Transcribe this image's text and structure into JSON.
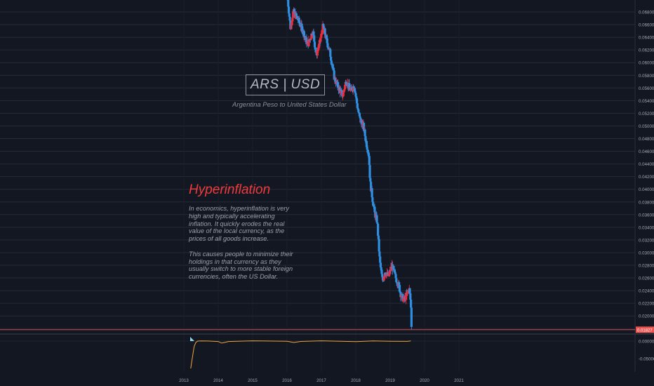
{
  "annotation_box": {
    "label": "ARS | USD",
    "subtitle": "Argentina Peso to United States Dollar"
  },
  "annotation_text": {
    "title": "Hyperinflation",
    "paragraph1": "In economics, hyperinflation is very high and typically accelerating inflation. It quickly erodes the real value of the local currency, as the prices of all goods increase.",
    "paragraph2": "This causes people to minimize their holdings in that currency as they usually switch to more stable foreign currencies, often the US Dollar."
  },
  "colors": {
    "background": "#131722",
    "grid": "#262b38",
    "up": "#ef2b3b",
    "down": "#2f8fe0",
    "price_line": "#ef5350",
    "osc_line": "#f0a33a",
    "axis_text": "#a3a6af"
  },
  "chart_data": [
    {
      "type": "candlestick",
      "y_axis_ticks": [
        "0.06800",
        "0.06600",
        "0.06400",
        "0.06200",
        "0.06000",
        "0.05800",
        "0.05600",
        "0.05400",
        "0.05200",
        "0.05000",
        "0.04800",
        "0.04600",
        "0.04400",
        "0.04200",
        "0.04000",
        "0.03800",
        "0.03600",
        "0.03400",
        "0.03200",
        "0.03000",
        "0.02800",
        "0.02600",
        "0.02400",
        "0.02200",
        "0.02000",
        "0.01800"
      ],
      "ylim": [
        0.0178,
        0.07
      ],
      "x_axis_ticks": [
        "2013",
        "2014",
        "2015",
        "2016",
        "2017",
        "2018",
        "2019",
        "2020",
        "2021"
      ],
      "last_price_label": "0.01827",
      "price_path": [
        {
          "x": 2016.02,
          "y": 0.07
        },
        {
          "x": 2016.1,
          "y": 0.0655
        },
        {
          "x": 2016.18,
          "y": 0.068
        },
        {
          "x": 2016.3,
          "y": 0.067
        },
        {
          "x": 2016.45,
          "y": 0.0652
        },
        {
          "x": 2016.6,
          "y": 0.0628
        },
        {
          "x": 2016.75,
          "y": 0.065
        },
        {
          "x": 2016.85,
          "y": 0.0612
        },
        {
          "x": 2016.95,
          "y": 0.063
        },
        {
          "x": 2017.05,
          "y": 0.0658
        },
        {
          "x": 2017.15,
          "y": 0.0635
        },
        {
          "x": 2017.25,
          "y": 0.0616
        },
        {
          "x": 2017.38,
          "y": 0.0575
        },
        {
          "x": 2017.5,
          "y": 0.056
        },
        {
          "x": 2017.62,
          "y": 0.0548
        },
        {
          "x": 2017.72,
          "y": 0.0572
        },
        {
          "x": 2017.85,
          "y": 0.0555
        },
        {
          "x": 2017.95,
          "y": 0.0565
        },
        {
          "x": 2018.05,
          "y": 0.053
        },
        {
          "x": 2018.12,
          "y": 0.051
        },
        {
          "x": 2018.22,
          "y": 0.05
        },
        {
          "x": 2018.3,
          "y": 0.0475
        },
        {
          "x": 2018.38,
          "y": 0.0455
        },
        {
          "x": 2018.42,
          "y": 0.041
        },
        {
          "x": 2018.5,
          "y": 0.038
        },
        {
          "x": 2018.55,
          "y": 0.0362
        },
        {
          "x": 2018.62,
          "y": 0.035
        },
        {
          "x": 2018.7,
          "y": 0.0285
        },
        {
          "x": 2018.78,
          "y": 0.0255
        },
        {
          "x": 2018.85,
          "y": 0.027
        },
        {
          "x": 2018.95,
          "y": 0.0262
        },
        {
          "x": 2019.05,
          "y": 0.028
        },
        {
          "x": 2019.15,
          "y": 0.0262
        },
        {
          "x": 2019.25,
          "y": 0.0248
        },
        {
          "x": 2019.32,
          "y": 0.0232
        },
        {
          "x": 2019.4,
          "y": 0.0225
        },
        {
          "x": 2019.5,
          "y": 0.0235
        },
        {
          "x": 2019.55,
          "y": 0.0245
        },
        {
          "x": 2019.6,
          "y": 0.022
        },
        {
          "x": 2019.62,
          "y": 0.0185
        }
      ]
    },
    {
      "type": "line",
      "y_axis_ticks": [
        "0.00000",
        "-0.05000"
      ],
      "ylim": [
        -0.08,
        0.02
      ],
      "x": [
        2013.2,
        2013.25,
        2013.3,
        2013.35,
        2013.4,
        2013.5,
        2013.7,
        2014.0,
        2014.1,
        2014.3,
        2015.0,
        2016.0,
        2016.2,
        2016.4,
        2017.0,
        2018.0,
        2018.5,
        2019.0,
        2019.5,
        2019.6
      ],
      "values": [
        -0.078,
        -0.045,
        -0.015,
        -0.004,
        0.0,
        0.0006,
        0.0003,
        -0.0012,
        -0.0058,
        -0.0012,
        0.0008,
        -0.0005,
        -0.004,
        -0.001,
        0.0008,
        -0.0015,
        0.0006,
        -0.0004,
        -0.0008,
        0.0005
      ]
    }
  ]
}
